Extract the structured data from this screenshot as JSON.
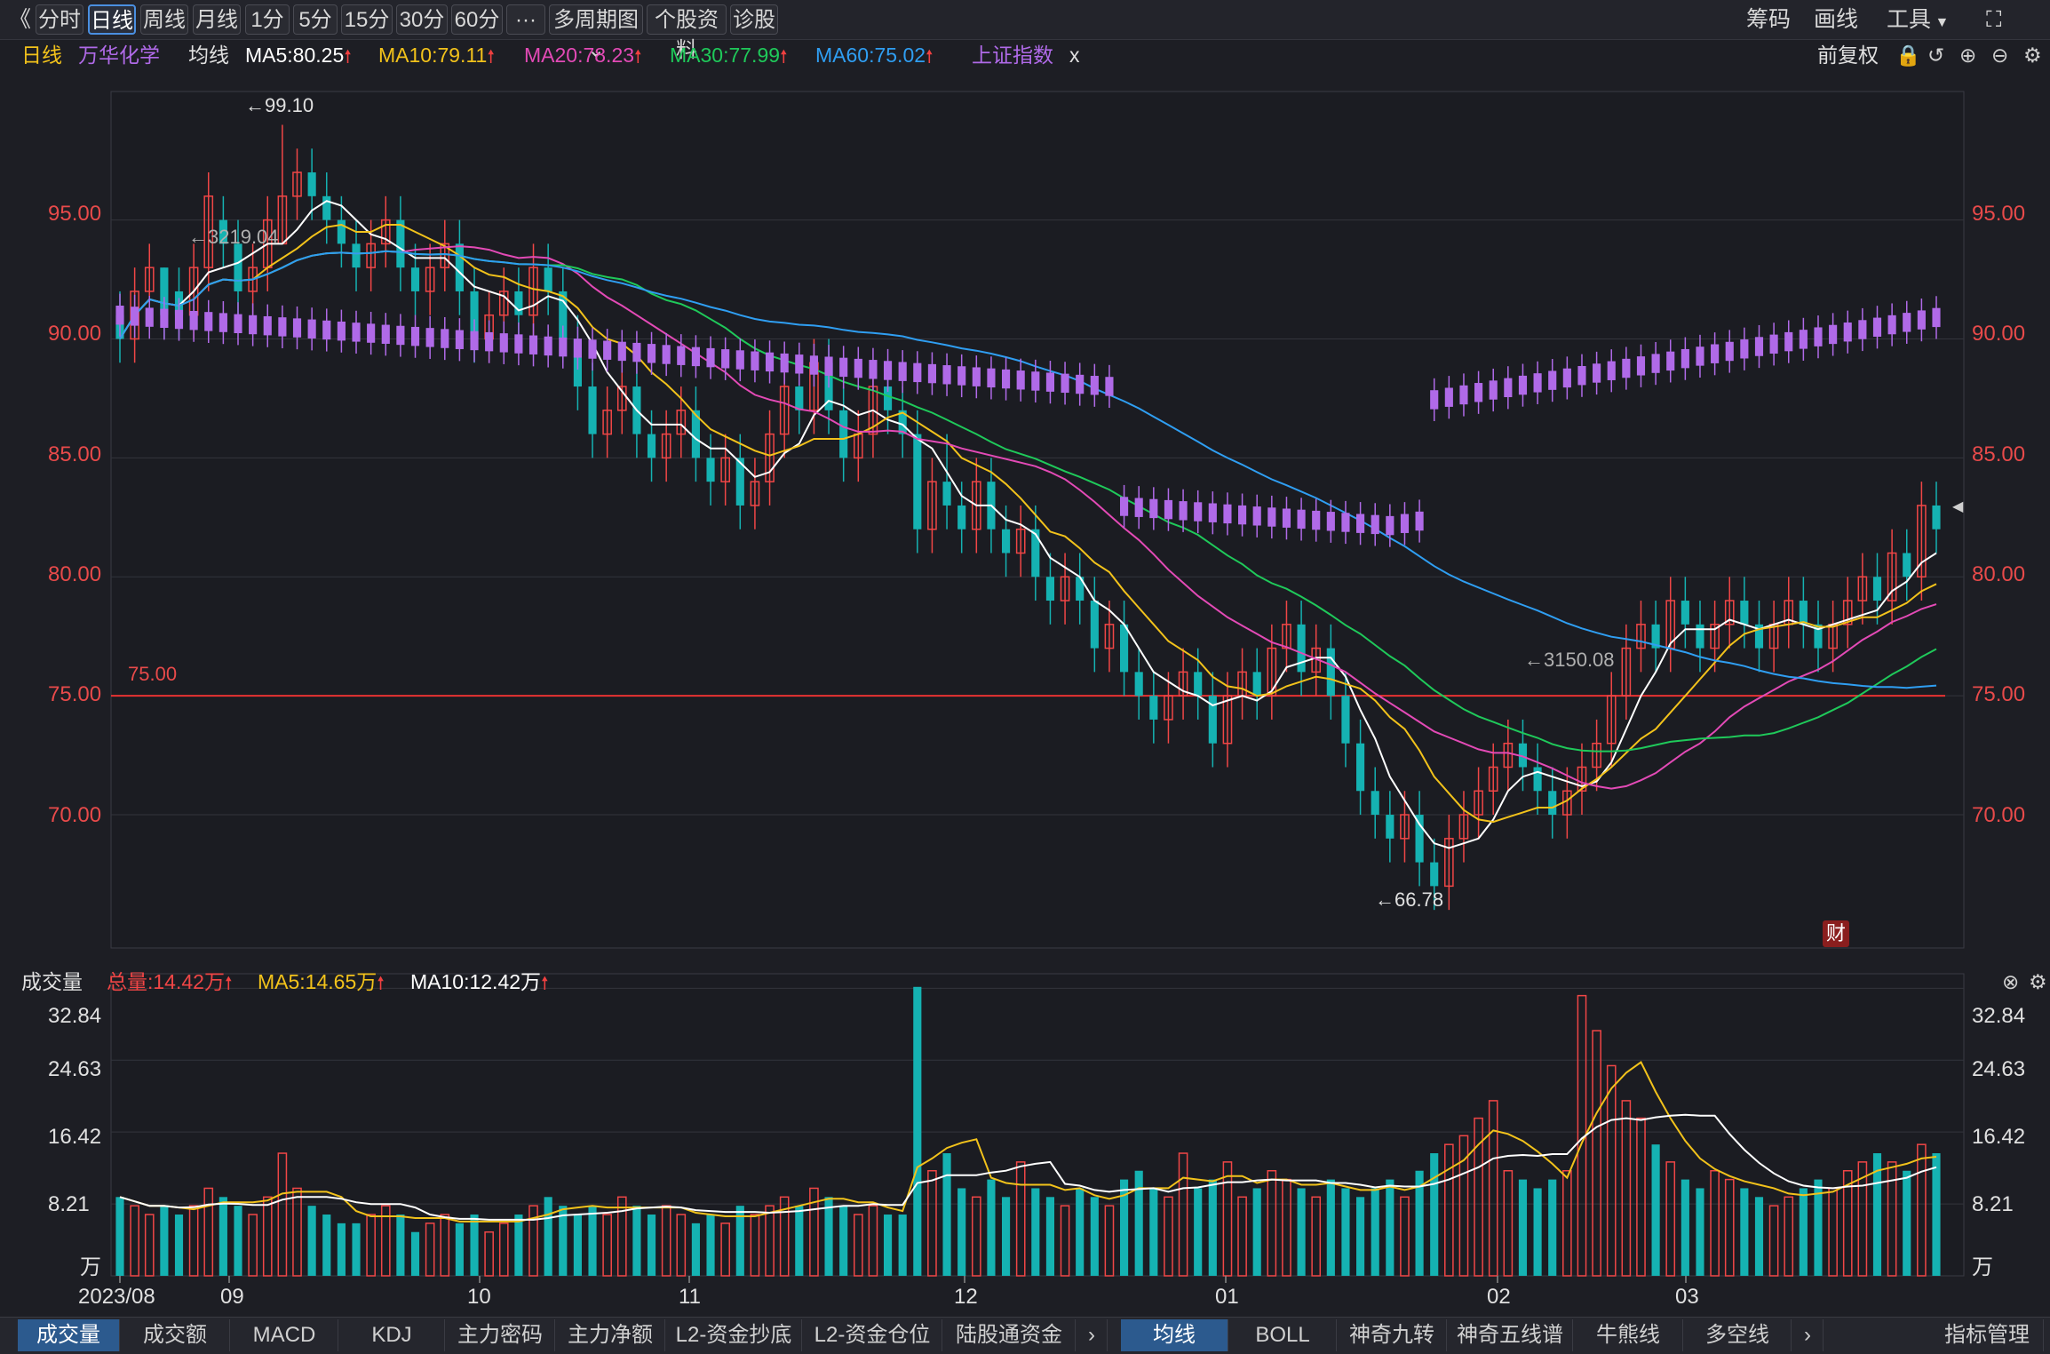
{
  "toolbar": {
    "back_icon": "double-chevron-left-icon",
    "periods": [
      "分时",
      "日线",
      "周线",
      "月线",
      "1分",
      "5分",
      "15分",
      "30分",
      "60分"
    ],
    "active_period": "日线",
    "more": "···",
    "multi_period": "多周期图",
    "stock_info": "个股资料",
    "diagnose": "诊股",
    "right": {
      "chip": "筹码",
      "draw": "画线",
      "tools": "工具"
    }
  },
  "legend": {
    "period": "日线",
    "stock": "万华化学",
    "ma_title": "均线",
    "ma5": "MA5:80.25",
    "ma10": "MA10:79.11",
    "ma20": "MA20:78.23",
    "ma30": "MA30:77.99",
    "ma60": "MA60:75.02",
    "index": "上证指数",
    "close": "x",
    "adjust": "前复权"
  },
  "colors": {
    "up": "#f04646",
    "down": "#15b2b2",
    "ma5": "#ffffff",
    "ma10": "#f2c21b",
    "ma20": "#e34ab6",
    "ma30": "#1fc95a",
    "ma60": "#2f9ef2",
    "index": "#b06ae8",
    "hline": "#e83232"
  },
  "volume_legend": {
    "title": "成交量",
    "total": "总量:14.42万",
    "ma5": "MA5:14.65万",
    "ma10": "MA10:12.42万"
  },
  "annotations": {
    "high": "←99.10",
    "index_high": "←3219.04",
    "low": "←66.78",
    "index_low": "←3150.08",
    "hline_label": "75.00",
    "fin_badge": "财"
  },
  "x_labels": [
    "2023/08",
    "09",
    "10",
    "11",
    "12",
    "01",
    "02",
    "03"
  ],
  "vol_unit": "万",
  "bottom_tabs_left": [
    "成交量",
    "成交额",
    "MACD",
    "KDJ",
    "主力密码",
    "主力净额",
    "L2-资金抄底",
    "L2-资金仓位",
    "陆股通资金"
  ],
  "bottom_tabs_right": [
    "均线",
    "BOLL",
    "神奇九转",
    "神奇五线谱",
    "牛熊线",
    "多空线"
  ],
  "bottom_manage": "指标管理",
  "chart_data": {
    "type": "candlestick",
    "price_axis": {
      "ticks": [
        "70.00",
        "75.00",
        "80.00",
        "85.00",
        "90.00",
        "95.00"
      ],
      "ylim": [
        64.4,
        100.4
      ]
    },
    "volume_axis": {
      "ticks": [
        "8.21",
        "16.42",
        "24.63",
        "32.84"
      ],
      "unit": "万",
      "ylim": [
        0,
        34.5
      ]
    },
    "horizontal_line": 75.0,
    "candles": [
      [
        91,
        90,
        92,
        89,
        9
      ],
      [
        90,
        92,
        93,
        89,
        8
      ],
      [
        92,
        93,
        94,
        91,
        7
      ],
      [
        93,
        91,
        93,
        90,
        8
      ],
      [
        92,
        91,
        93,
        90,
        7
      ],
      [
        91,
        93,
        94,
        90,
        8
      ],
      [
        93,
        96,
        97,
        92,
        10
      ],
      [
        95,
        94,
        96,
        93,
        9
      ],
      [
        94,
        92,
        95,
        91,
        8
      ],
      [
        92,
        93,
        94,
        91,
        7
      ],
      [
        93,
        95,
        96,
        92,
        9
      ],
      [
        94,
        96,
        99,
        94,
        14
      ],
      [
        96,
        97,
        98,
        95,
        10
      ],
      [
        97,
        96,
        98,
        95,
        8
      ],
      [
        96,
        95,
        97,
        94,
        7
      ],
      [
        95,
        94,
        96,
        93,
        6
      ],
      [
        94,
        93,
        95,
        92,
        6
      ],
      [
        93,
        94,
        95,
        92,
        7
      ],
      [
        94,
        95,
        96,
        93,
        8
      ],
      [
        95,
        93,
        96,
        92,
        7
      ],
      [
        93,
        92,
        94,
        91,
        5
      ],
      [
        92,
        93,
        94,
        91,
        6
      ],
      [
        93,
        94,
        95,
        92,
        7
      ],
      [
        94,
        92,
        95,
        91,
        6
      ],
      [
        92,
        90,
        93,
        89,
        7
      ],
      [
        90,
        91,
        92,
        89,
        5
      ],
      [
        91,
        92,
        93,
        90,
        6
      ],
      [
        92,
        91,
        93,
        90,
        7
      ],
      [
        91,
        93,
        94,
        90,
        8
      ],
      [
        93,
        92,
        94,
        91,
        9
      ],
      [
        92,
        90,
        93,
        89,
        8
      ],
      [
        90,
        88,
        91,
        87,
        7
      ],
      [
        88,
        86,
        89,
        85,
        8
      ],
      [
        86,
        87,
        88,
        85,
        7
      ],
      [
        87,
        88,
        89,
        86,
        9
      ],
      [
        88,
        86,
        89,
        85,
        8
      ],
      [
        86,
        85,
        87,
        84,
        7
      ],
      [
        85,
        86,
        87,
        84,
        8
      ],
      [
        86,
        87,
        88,
        85,
        7
      ],
      [
        87,
        85,
        88,
        84,
        6
      ],
      [
        85,
        84,
        86,
        83,
        7
      ],
      [
        84,
        85,
        86,
        83,
        6
      ],
      [
        85,
        83,
        86,
        82,
        8
      ],
      [
        83,
        84,
        85,
        82,
        7
      ],
      [
        84,
        86,
        87,
        83,
        8
      ],
      [
        86,
        88,
        89,
        85,
        9
      ],
      [
        88,
        87,
        89,
        86,
        8
      ],
      [
        87,
        89,
        90,
        86,
        10
      ],
      [
        89,
        87,
        90,
        86,
        9
      ],
      [
        87,
        85,
        88,
        84,
        8
      ],
      [
        85,
        86,
        87,
        84,
        7
      ],
      [
        86,
        88,
        89,
        85,
        8
      ],
      [
        88,
        87,
        89,
        86,
        7
      ],
      [
        87,
        86,
        88,
        85,
        7
      ],
      [
        86,
        82,
        87,
        81,
        33
      ],
      [
        82,
        84,
        85,
        81,
        12
      ],
      [
        84,
        83,
        86,
        82,
        14
      ],
      [
        83,
        82,
        84,
        81,
        10
      ],
      [
        82,
        84,
        85,
        81,
        9
      ],
      [
        84,
        82,
        85,
        81,
        11
      ],
      [
        82,
        81,
        83,
        80,
        9
      ],
      [
        81,
        82,
        83,
        80,
        13
      ],
      [
        82,
        80,
        83,
        79,
        10
      ],
      [
        80,
        79,
        81,
        78,
        9
      ],
      [
        79,
        80,
        81,
        78,
        8
      ],
      [
        80,
        79,
        81,
        78,
        10
      ],
      [
        79,
        77,
        80,
        76,
        9
      ],
      [
        77,
        78,
        79,
        76,
        8
      ],
      [
        78,
        76,
        79,
        75,
        11
      ],
      [
        76,
        75,
        77,
        74,
        12
      ],
      [
        75,
        74,
        76,
        73,
        10
      ],
      [
        74,
        75,
        76,
        73,
        9
      ],
      [
        75,
        76,
        77,
        74,
        14
      ],
      [
        76,
        75,
        77,
        74,
        10
      ],
      [
        75,
        73,
        76,
        72,
        11
      ],
      [
        73,
        75,
        76,
        72,
        13
      ],
      [
        75,
        76,
        77,
        74,
        9
      ],
      [
        76,
        75,
        77,
        74,
        10
      ],
      [
        75,
        77,
        78,
        74,
        12
      ],
      [
        77,
        78,
        79,
        76,
        11
      ],
      [
        78,
        76,
        79,
        75,
        10
      ],
      [
        76,
        77,
        78,
        75,
        9
      ],
      [
        77,
        75,
        78,
        74,
        11
      ],
      [
        75,
        73,
        76,
        72,
        10
      ],
      [
        73,
        71,
        74,
        70,
        9
      ],
      [
        71,
        70,
        72,
        69,
        10
      ],
      [
        70,
        69,
        71,
        68,
        11
      ],
      [
        69,
        70,
        71,
        68,
        9
      ],
      [
        70,
        68,
        71,
        67,
        12
      ],
      [
        68,
        67,
        69,
        66,
        14
      ],
      [
        67,
        69,
        70,
        66,
        15
      ],
      [
        69,
        70,
        71,
        68,
        16
      ],
      [
        70,
        71,
        72,
        69,
        18
      ],
      [
        71,
        72,
        73,
        70,
        20
      ],
      [
        72,
        73,
        74,
        71,
        12
      ],
      [
        73,
        72,
        74,
        71,
        11
      ],
      [
        72,
        71,
        73,
        70,
        10
      ],
      [
        71,
        70,
        72,
        69,
        11
      ],
      [
        70,
        71,
        72,
        69,
        12
      ],
      [
        71,
        72,
        73,
        70,
        32
      ],
      [
        72,
        73,
        74,
        71,
        28
      ],
      [
        73,
        75,
        76,
        72,
        24
      ],
      [
        75,
        77,
        78,
        74,
        20
      ],
      [
        77,
        78,
        79,
        76,
        18
      ],
      [
        78,
        77,
        79,
        76,
        15
      ],
      [
        77,
        79,
        80,
        76,
        13
      ],
      [
        79,
        78,
        80,
        77,
        11
      ],
      [
        78,
        77,
        79,
        76,
        10
      ],
      [
        77,
        78,
        79,
        76,
        12
      ],
      [
        78,
        79,
        80,
        77,
        11
      ],
      [
        79,
        78,
        80,
        77,
        10
      ],
      [
        78,
        77,
        79,
        76,
        9
      ],
      [
        77,
        78,
        79,
        76,
        8
      ],
      [
        78,
        79,
        80,
        77,
        9
      ],
      [
        79,
        78,
        80,
        77,
        10
      ],
      [
        78,
        77,
        79,
        76,
        11
      ],
      [
        77,
        78,
        79,
        76,
        10
      ],
      [
        78,
        79,
        80,
        77,
        12
      ],
      [
        79,
        80,
        81,
        78,
        13
      ],
      [
        80,
        79,
        81,
        78,
        14
      ],
      [
        79,
        81,
        82,
        78,
        13
      ],
      [
        81,
        80,
        82,
        79,
        12
      ],
      [
        80,
        83,
        84,
        79,
        15
      ],
      [
        83,
        82,
        84,
        81,
        14
      ]
    ]
  }
}
